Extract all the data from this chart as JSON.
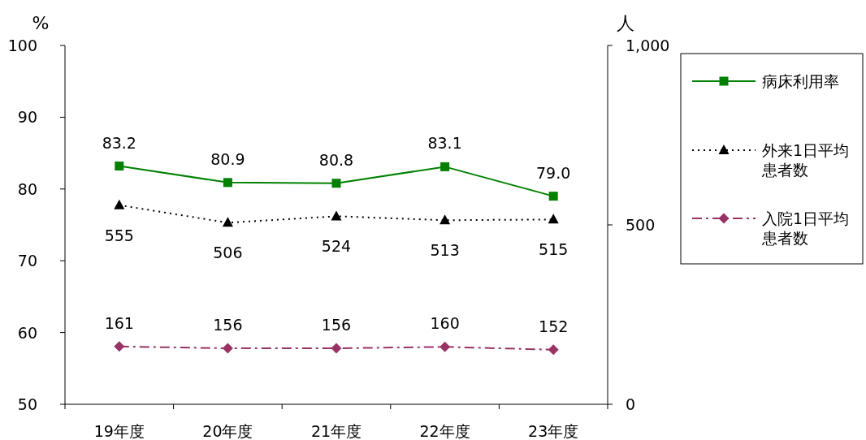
{
  "chart_data": {
    "type": "line",
    "categories": [
      "19年度",
      "20年度",
      "21年度",
      "22年度",
      "23年度"
    ],
    "ylabel": "%",
    "y2label": "人",
    "ylim": [
      50,
      100
    ],
    "yticks": [
      50,
      60,
      70,
      80,
      90,
      100
    ],
    "y2lim": [
      0,
      1000
    ],
    "y2ticks": [
      0,
      500,
      {
        "value": 1000,
        "label": "1,000"
      }
    ],
    "data_labels": true,
    "legend": "right",
    "grid": false,
    "series": [
      {
        "name": "病床利用率",
        "color": "#008000",
        "values": [
          83.2,
          80.9,
          80.8,
          83.1,
          79.0
        ],
        "marker": "square",
        "line_style": "solid",
        "value_labels": [
          "83.2",
          "80.9",
          "80.8",
          "83.1",
          "79.0"
        ]
      },
      {
        "name": "外来1日平均患者数",
        "color": "#000000",
        "values": [
          555,
          506,
          524,
          513,
          515
        ],
        "axis": "y2",
        "marker": "triangle",
        "line_style": "dotted"
      },
      {
        "name": "入院1日平均患者数",
        "color": "#993366",
        "values": [
          161,
          156,
          156,
          160,
          152
        ],
        "axis": "y2",
        "marker": "diamond",
        "line_style": "dashed"
      }
    ]
  }
}
